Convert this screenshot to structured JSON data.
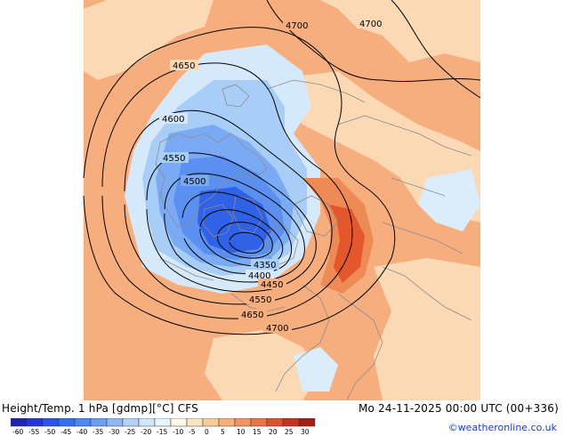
{
  "header": {
    "left_title": "Height/Temp. 1 hPa [gdmp][°C] CFS",
    "right_title": "Mo 24-11-2025 00:00 UTC (00+336)"
  },
  "credit": "©weatheronline.co.uk",
  "contour_labels": [
    "4700",
    "4700",
    "4650",
    "4600",
    "4550",
    "4500",
    "4350",
    "4400",
    "4450",
    "4550",
    "4650",
    "4700"
  ],
  "colorbar": {
    "ticks": [
      "-60",
      "-55",
      "-50",
      "-45",
      "-40",
      "-35",
      "-30",
      "-25",
      "-20",
      "-15",
      "-10",
      "-5",
      "0",
      "5",
      "10",
      "15",
      "20",
      "25",
      "30"
    ],
    "colors": [
      "#1f24b5",
      "#2436d8",
      "#2a54ec",
      "#3570f2",
      "#4a88f2",
      "#6a9ff3",
      "#8eb8f5",
      "#b4d2f8",
      "#d2e6fb",
      "#e8f3fd",
      "#fff8e6",
      "#fbe4c2",
      "#f8cc9a",
      "#f4b17a",
      "#f09560",
      "#e87545",
      "#dc5232",
      "#c63220",
      "#a61c16"
    ]
  },
  "map_colors": {
    "background": "#f7ae7f",
    "warm_light": "#fbd9b4",
    "cold_light": "#d6e9fb",
    "cold_mid": "#a8cdf6",
    "cold_deep": "#5b8ff0",
    "cold_core": "#2f62e6",
    "warm_core": "#e4562c",
    "contour": "#000000",
    "coastline": "#8c8c8c"
  }
}
